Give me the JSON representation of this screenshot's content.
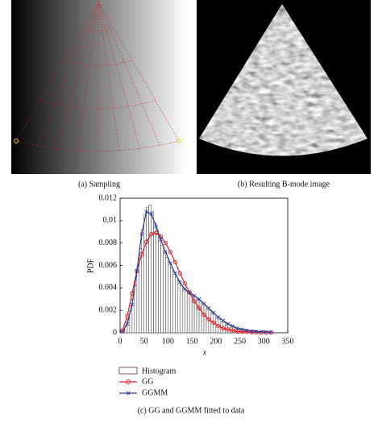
{
  "panels": [
    {
      "caption": "(a)  Sampling"
    },
    {
      "caption": "(b)  Resulting B-mode image"
    }
  ],
  "chart_data": {
    "type": "histogram",
    "caption": "(c)  GG and GGMM fitted to data",
    "x_label": "x",
    "y_label": "PDF",
    "histogram_label": "Histogram",
    "xlim": [
      0,
      350
    ],
    "xticks": [
      0,
      50,
      100,
      150,
      200,
      250,
      300,
      350
    ],
    "ylim": [
      0,
      0.012
    ],
    "yticks": [
      0,
      0.002,
      0.004,
      0.006,
      0.008,
      0.01,
      0.012
    ],
    "bins": [
      5,
      10,
      15,
      20,
      25,
      30,
      35,
      40,
      45,
      50,
      55,
      60,
      65,
      70,
      75,
      80,
      85,
      90,
      95,
      100,
      105,
      110,
      115,
      120,
      125,
      130,
      135,
      140,
      145,
      150,
      155,
      160,
      165,
      170,
      175,
      180,
      185,
      190,
      195,
      200,
      205,
      210,
      215,
      220,
      225,
      230,
      235,
      240,
      245,
      250,
      255,
      260,
      265,
      270,
      275,
      280,
      285,
      290,
      295,
      300,
      305,
      310,
      315,
      320
    ],
    "counts": [
      0.0002,
      0.0006,
      0.0012,
      0.002,
      0.003,
      0.0042,
      0.0058,
      0.0075,
      0.0092,
      0.0105,
      0.0112,
      0.0114,
      0.0108,
      0.0098,
      0.0092,
      0.0085,
      0.0078,
      0.0072,
      0.0067,
      0.0063,
      0.0058,
      0.0054,
      0.005,
      0.0046,
      0.0042,
      0.0039,
      0.0037,
      0.0035,
      0.0034,
      0.0033,
      0.0032,
      0.003,
      0.0028,
      0.0026,
      0.0024,
      0.0022,
      0.002,
      0.0018,
      0.0016,
      0.0014,
      0.0012,
      0.001,
      0.0009,
      0.0008,
      0.0007,
      0.0006,
      0.0005,
      0.0004,
      0.0004,
      0.0003,
      0.0003,
      0.0003,
      0.0002,
      0.0002,
      0.0002,
      0.0002,
      0.0001,
      0.0001,
      0.0001,
      0.0001,
      0.0001,
      0.0001,
      0.0001
    ],
    "series": [
      {
        "name": "GG",
        "color": "#e8202a",
        "marker": "circle",
        "x": [
          5,
          15,
          25,
          35,
          45,
          55,
          65,
          75,
          85,
          95,
          105,
          115,
          125,
          135,
          145,
          155,
          165,
          175,
          185,
          195,
          205,
          215,
          225,
          235,
          245,
          255,
          265,
          275,
          285,
          295,
          305,
          315
        ],
        "values": [
          0.0002,
          0.0015,
          0.0035,
          0.0055,
          0.007,
          0.0081,
          0.0088,
          0.0089,
          0.0086,
          0.008,
          0.0072,
          0.0063,
          0.0053,
          0.0044,
          0.0036,
          0.0028,
          0.0022,
          0.0016,
          0.0012,
          0.0009,
          0.0006,
          0.0004,
          0.0003,
          0.0002,
          0.0001,
          0.0001,
          0.0001,
          5e-05,
          3e-05,
          2e-05,
          1e-05,
          1e-05
        ]
      },
      {
        "name": "GGMM",
        "color": "#2a3f9a",
        "marker": "cross",
        "x": [
          5,
          15,
          25,
          35,
          45,
          55,
          65,
          75,
          85,
          95,
          105,
          115,
          125,
          135,
          145,
          155,
          165,
          175,
          185,
          195,
          205,
          215,
          225,
          235,
          245,
          255,
          265,
          275,
          285,
          295,
          305,
          315
        ],
        "values": [
          0.0001,
          0.0008,
          0.0025,
          0.0055,
          0.0088,
          0.0108,
          0.0106,
          0.0095,
          0.0083,
          0.0072,
          0.0062,
          0.0053,
          0.0045,
          0.0039,
          0.0036,
          0.0033,
          0.003,
          0.0026,
          0.0022,
          0.0018,
          0.0014,
          0.0011,
          0.0008,
          0.0006,
          0.0004,
          0.0003,
          0.0002,
          0.00015,
          0.0001,
          8e-05,
          5e-05,
          3e-05
        ]
      }
    ]
  }
}
